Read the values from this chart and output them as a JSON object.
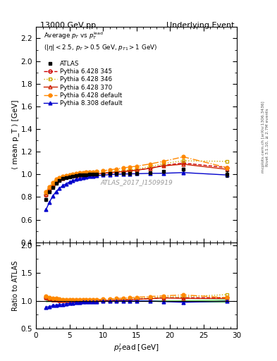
{
  "title_left": "13000 GeV pp",
  "title_right": "Underlying Event",
  "right_label_top": "Rivet 3.1.10, ≥ 2.7M events",
  "right_label_bot": "mcplots.cern.ch [arXiv:1306.3436]",
  "watermark": "ATLAS_2017_I1509919",
  "ylabel_main": "⟨ mean p_T ⟩ [GeV]",
  "ylabel_ratio": "Ratio to ATLAS",
  "xlabel": "p$_T^l$ead [GeV]",
  "ylim_main": [
    0.4,
    2.3
  ],
  "ylim_ratio": [
    0.5,
    2.05
  ],
  "yticks_main": [
    0.4,
    0.6,
    0.8,
    1.0,
    1.2,
    1.4,
    1.6,
    1.8,
    2.0,
    2.2
  ],
  "yticks_ratio": [
    0.5,
    1.0,
    1.5,
    2.0
  ],
  "xlim": [
    0,
    30
  ],
  "series": {
    "ATLAS": {
      "color": "#000000",
      "marker": "s",
      "fillstyle": "full",
      "markersize": 3.5,
      "linestyle": "none",
      "is_data": true,
      "x": [
        1.5,
        2.0,
        2.5,
        3.0,
        3.5,
        4.0,
        4.5,
        5.0,
        5.5,
        6.0,
        6.5,
        7.0,
        7.5,
        8.0,
        8.5,
        9.0,
        10.0,
        11.0,
        12.0,
        13.0,
        14.0,
        15.0,
        17.0,
        19.0,
        22.0,
        28.5
      ],
      "y": [
        0.78,
        0.845,
        0.885,
        0.92,
        0.945,
        0.962,
        0.972,
        0.98,
        0.985,
        0.99,
        0.994,
        0.996,
        0.998,
        1.0,
        1.001,
        1.002,
        1.005,
        1.007,
        1.008,
        1.009,
        1.01,
        1.01,
        1.015,
        1.025,
        1.045,
        1.005
      ],
      "yerr": [
        0.012,
        0.01,
        0.008,
        0.007,
        0.006,
        0.005,
        0.005,
        0.004,
        0.004,
        0.004,
        0.003,
        0.003,
        0.003,
        0.003,
        0.003,
        0.003,
        0.003,
        0.003,
        0.003,
        0.004,
        0.004,
        0.005,
        0.006,
        0.008,
        0.012,
        0.025
      ]
    },
    "Pythia 6.428 345": {
      "color": "#cc0000",
      "marker": "o",
      "fillstyle": "none",
      "markersize": 3.5,
      "linestyle": "--",
      "x": [
        1.5,
        2.0,
        2.5,
        3.0,
        3.5,
        4.0,
        4.5,
        5.0,
        5.5,
        6.0,
        6.5,
        7.0,
        7.5,
        8.0,
        8.5,
        9.0,
        10.0,
        11.0,
        12.0,
        13.0,
        14.0,
        15.0,
        17.0,
        19.0,
        22.0,
        28.5
      ],
      "y": [
        0.82,
        0.87,
        0.905,
        0.935,
        0.956,
        0.968,
        0.977,
        0.983,
        0.988,
        0.992,
        0.995,
        0.997,
        0.999,
        1.001,
        1.003,
        1.005,
        1.01,
        1.015,
        1.02,
        1.025,
        1.032,
        1.038,
        1.055,
        1.08,
        1.1,
        1.06
      ]
    },
    "Pythia 6.428 346": {
      "color": "#ccaa00",
      "marker": "s",
      "fillstyle": "none",
      "markersize": 3.5,
      "linestyle": ":",
      "x": [
        1.5,
        2.0,
        2.5,
        3.0,
        3.5,
        4.0,
        4.5,
        5.0,
        5.5,
        6.0,
        6.5,
        7.0,
        7.5,
        8.0,
        8.5,
        9.0,
        10.0,
        11.0,
        12.0,
        13.0,
        14.0,
        15.0,
        17.0,
        19.0,
        22.0,
        28.5
      ],
      "y": [
        0.835,
        0.882,
        0.916,
        0.946,
        0.965,
        0.977,
        0.984,
        0.989,
        0.993,
        0.996,
        0.999,
        1.001,
        1.003,
        1.006,
        1.008,
        1.01,
        1.015,
        1.02,
        1.027,
        1.033,
        1.04,
        1.048,
        1.068,
        1.095,
        1.12,
        1.115
      ]
    },
    "Pythia 6.428 370": {
      "color": "#cc2200",
      "marker": "^",
      "fillstyle": "none",
      "markersize": 3.5,
      "linestyle": "-",
      "x": [
        1.5,
        2.0,
        2.5,
        3.0,
        3.5,
        4.0,
        4.5,
        5.0,
        5.5,
        6.0,
        6.5,
        7.0,
        7.5,
        8.0,
        8.5,
        9.0,
        10.0,
        11.0,
        12.0,
        13.0,
        14.0,
        15.0,
        17.0,
        19.0,
        22.0,
        28.5
      ],
      "y": [
        0.82,
        0.868,
        0.904,
        0.932,
        0.954,
        0.967,
        0.976,
        0.982,
        0.987,
        0.991,
        0.994,
        0.997,
        0.999,
        1.001,
        1.003,
        1.005,
        1.01,
        1.015,
        1.02,
        1.025,
        1.032,
        1.037,
        1.053,
        1.075,
        1.09,
        1.045
      ]
    },
    "Pythia 6.428 default": {
      "color": "#ff8800",
      "marker": "o",
      "fillstyle": "full",
      "markersize": 3.5,
      "linestyle": "-.",
      "x": [
        1.5,
        2.0,
        2.5,
        3.0,
        3.5,
        4.0,
        4.5,
        5.0,
        5.5,
        6.0,
        6.5,
        7.0,
        7.5,
        8.0,
        8.5,
        9.0,
        10.0,
        11.0,
        12.0,
        13.0,
        14.0,
        15.0,
        17.0,
        19.0,
        22.0,
        28.5
      ],
      "y": [
        0.845,
        0.892,
        0.928,
        0.957,
        0.972,
        0.983,
        0.99,
        0.996,
        1.002,
        1.007,
        1.012,
        1.015,
        1.018,
        1.02,
        1.023,
        1.025,
        1.032,
        1.04,
        1.048,
        1.057,
        1.065,
        1.072,
        1.092,
        1.115,
        1.155,
        1.06
      ]
    },
    "Pythia 8.308 default": {
      "color": "#0000cc",
      "marker": "^",
      "fillstyle": "full",
      "markersize": 3.5,
      "linestyle": "-",
      "x": [
        1.5,
        2.0,
        2.5,
        3.0,
        3.5,
        4.0,
        4.5,
        5.0,
        5.5,
        6.0,
        6.5,
        7.0,
        7.5,
        8.0,
        8.5,
        9.0,
        10.0,
        11.0,
        12.0,
        13.0,
        14.0,
        15.0,
        17.0,
        19.0,
        22.0,
        28.5
      ],
      "y": [
        0.69,
        0.755,
        0.808,
        0.849,
        0.878,
        0.9,
        0.918,
        0.933,
        0.945,
        0.956,
        0.964,
        0.971,
        0.977,
        0.982,
        0.986,
        0.989,
        0.994,
        0.998,
        1.001,
        1.003,
        1.005,
        1.006,
        1.009,
        1.01,
        1.016,
        0.995
      ]
    }
  },
  "atlas_band_color": "#00bb00",
  "atlas_band_alpha": 0.35,
  "mc_order": [
    "Pythia 6.428 345",
    "Pythia 6.428 346",
    "Pythia 6.428 370",
    "Pythia 6.428 default",
    "Pythia 8.308 default"
  ]
}
